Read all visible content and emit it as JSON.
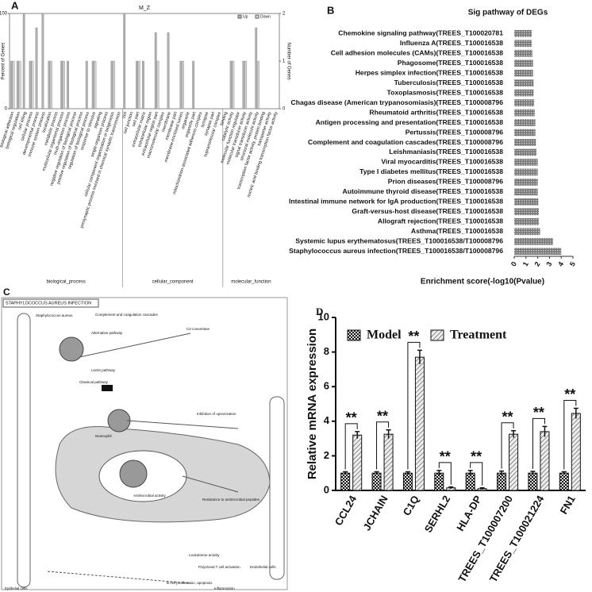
{
  "chart_data": [
    {
      "panel": "A",
      "type": "bar",
      "title": "M_Z",
      "y_label": "Percent of Genes",
      "y2_label": "Number of Genes",
      "groups": [
        {
          "name": "biological_process",
          "categories": [
            "biological adhesion",
            "biological regulation",
            "cell killing",
            "cellular process",
            "developmental process",
            "immune system process",
            "localization",
            "metabolic process",
            "multicellular organismal process",
            "multi-organism process",
            "negative regulation of biological process",
            "positive regulation of biological process",
            "regulation of biological process",
            "response to stimulus",
            "signaling",
            "single-organism process",
            "cellular component organization or biogenesis",
            "presynaptic process involved in chemical synaptic transmission"
          ]
        },
        {
          "name": "cellular_component",
          "categories": [
            "cell",
            "cell junction",
            "cell part",
            "extracellular matrix",
            "extracellular region",
            "extracellular region part",
            "macromolecular complex",
            "membrane",
            "membrane part",
            "membrane-enclosed lumen",
            "organelle",
            "organelle part",
            "mitochondrion-associated adherens complex",
            "synapse",
            "synapse part",
            "supramolecular complex"
          ]
        },
        {
          "name": "molecular_function",
          "categories": [
            "binding",
            "catalytic activity",
            "molecular function regulator",
            "molecular transducer activity",
            "signal transducer activity",
            "structural molecule activity",
            "transcription factor activity, protein binding",
            "transporter activity",
            "nucleic acid binding transcription factor activity"
          ]
        }
      ],
      "series": [
        {
          "name": "Up",
          "color": "#b0b0b0",
          "values": [
            50,
            50,
            100,
            50,
            85,
            100,
            50,
            0,
            50,
            50,
            0,
            0,
            50,
            50,
            0,
            0,
            50,
            0,
            100,
            0,
            50,
            50,
            0,
            80,
            0,
            80,
            0,
            50,
            0,
            50,
            0,
            0,
            0,
            0,
            0,
            50,
            0,
            50,
            0,
            85,
            0,
            0,
            0
          ]
        },
        {
          "name": "Down",
          "color": "#d4d4d4",
          "values": [
            50,
            50,
            0,
            50,
            0,
            0,
            50,
            0,
            50,
            0,
            0,
            0,
            0,
            50,
            0,
            0,
            50,
            0,
            0,
            0,
            50,
            0,
            0,
            50,
            0,
            0,
            0,
            50,
            0,
            0,
            0,
            0,
            0,
            0,
            0,
            50,
            0,
            50,
            0,
            50,
            0,
            0,
            0
          ]
        }
      ],
      "ylim": [
        0,
        100
      ],
      "yticks": [
        0,
        100
      ],
      "y2lim": [
        0,
        2
      ],
      "y2ticks": [
        0,
        1,
        2
      ]
    },
    {
      "panel": "B",
      "type": "hbar",
      "title": "Sig pathway of DEGs",
      "x_label": "Enrichment score(-log10(Pvalue)",
      "color": "#8a8a8a",
      "categories": [
        "Chemokine signaling pathway(TREES_T100020781",
        "Influenza A(TREES_T100016538",
        "Cell adhesion molecules (CAMs)(TREES_T100016538",
        "Phagosome(TREES_T100016538",
        "Herpes simplex infection(TREES_T100016538",
        "Tuberculosis(TREES_T100016538",
        "Toxoplasmosis(TREES_T100016538",
        "Chagas disease (American trypanosomiasis)(TREES_T100008796",
        "Rheumatoid arthritis(TREES_T100016538",
        "Antigen processing and presentation(TREES_T100016538",
        "Pertussis(TREES_T100008796",
        "Complement and coagulation cascades(TREES_T100008796",
        "Leishmaniasis(TREES_T100016538",
        "Viral myocarditis(TREES_T100016538",
        "Type I diabetes mellitus(TREES_T100016538",
        "Prion diseases(TREES_T100008796",
        "Autoimmune thyroid disease(TREES_T100016538",
        "Intestinal immune network for IgA production(TREES_T100016538",
        "Graft-versus-host disease(TREES_T100016538",
        "Allograft rejection(TREES_T100016538",
        "Asthma(TREES_T100016538",
        "Systemic lupus erythematosus(TREES_T100016538/T100008796",
        "Staphylococcus aureus infection(TREES_T100016538/T100008796"
      ],
      "values": [
        1.5,
        1.5,
        1.55,
        1.6,
        1.6,
        1.65,
        1.65,
        1.7,
        1.75,
        1.8,
        1.8,
        1.85,
        1.9,
        2.0,
        2.0,
        2.0,
        2.0,
        2.05,
        2.1,
        2.1,
        2.2,
        3.3,
        4.0
      ],
      "xlim": [
        0,
        5
      ],
      "xticks": [
        0,
        1,
        2,
        3,
        4,
        5
      ]
    },
    {
      "panel": "D",
      "type": "grouped-bar",
      "y_label": "Relative mRNA expression",
      "categories": [
        "CCL24",
        "JCHAIN",
        "C1Q",
        "SERHL2",
        "HLA-DP",
        "TREES_T100007200",
        "TREES_T100021224",
        "FN1"
      ],
      "series": [
        {
          "name": "Model",
          "color": "#222222",
          "values": [
            1.0,
            1.0,
            1.0,
            1.0,
            1.0,
            1.0,
            1.0,
            1.0
          ],
          "errors": [
            0.08,
            0.08,
            0.08,
            0.15,
            0.15,
            0.12,
            0.1,
            0.08
          ]
        },
        {
          "name": "Treatment",
          "color": "#aaaaaa",
          "values": [
            3.2,
            3.25,
            7.7,
            0.15,
            0.1,
            3.25,
            3.4,
            4.45
          ],
          "errors": [
            0.2,
            0.25,
            0.4,
            0.05,
            0.05,
            0.2,
            0.3,
            0.3
          ]
        }
      ],
      "annotations": [
        "**",
        "**",
        "**",
        "**",
        "**",
        "**",
        "**",
        "**"
      ],
      "ylim": [
        0,
        10
      ],
      "yticks": [
        0,
        2,
        4,
        6,
        8,
        10
      ]
    }
  ],
  "pathway": {
    "panel": "C",
    "title": "STAPHYLOCOCCUS AUREUS INFECTION",
    "nodes": [
      "Staphylococcus aureus",
      "Lectin pathway",
      "Classical pathway",
      "Alternative pathway",
      "Complement and coagulation cascades",
      "C3 convertase",
      "Inhibition of opsonization",
      "Neutrophil",
      "Antimicrobial activity",
      "Resistance to antimicrobial peptides",
      "Leukotriene activity",
      "Epithelial cells",
      "Endothelial cells",
      "Polyclonal T cell activation",
      "B cell proliferation, apoptosis",
      "Inflammation"
    ]
  }
}
